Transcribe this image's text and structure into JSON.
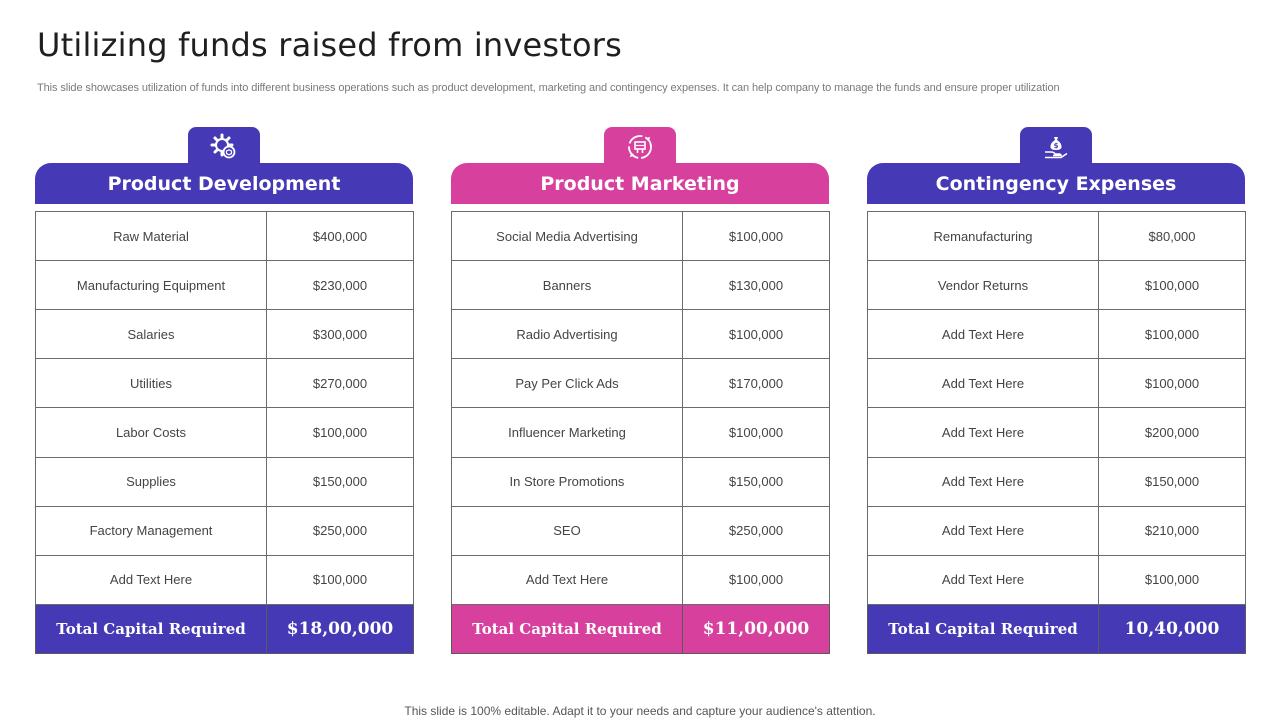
{
  "page": {
    "title": "Utilizing funds raised from investors",
    "subtitle": "This slide showcases utilization of funds into different business operations such as product development, marketing and contingency expenses. It can help company to manage the funds and ensure proper utilization",
    "footer": "This slide is 100% editable. Adapt it to your needs and capture your audience's attention."
  },
  "colors": {
    "blue": "#4539b6",
    "pink": "#d8409e"
  },
  "panels": [
    {
      "title": "Product Development",
      "icon": "gear-settings-icon",
      "rows": [
        {
          "label": "Raw Material",
          "value": "$400,000"
        },
        {
          "label": "Manufacturing  Equipment",
          "value": "$230,000"
        },
        {
          "label": "Salaries",
          "value": "$300,000"
        },
        {
          "label": "Utilities",
          "value": "$270,000"
        },
        {
          "label": "Labor Costs",
          "value": "$100,000"
        },
        {
          "label": "Supplies",
          "value": "$150,000"
        },
        {
          "label": "Factory Management",
          "value": "$250,000"
        },
        {
          "label": "Add Text Here",
          "value": "$100,000"
        }
      ],
      "total": {
        "label": "Total Capital Required",
        "value": "$18,00,000"
      }
    },
    {
      "title": "Product Marketing",
      "icon": "marketing-target-icon",
      "rows": [
        {
          "label": "Social Media Advertising",
          "value": "$100,000"
        },
        {
          "label": "Banners",
          "value": "$130,000"
        },
        {
          "label": "Radio Advertising",
          "value": "$100,000"
        },
        {
          "label": "Pay Per Click Ads",
          "value": "$170,000"
        },
        {
          "label": "Influencer  Marketing",
          "value": "$100,000"
        },
        {
          "label": "In Store Promotions",
          "value": "$150,000"
        },
        {
          "label": "SEO",
          "value": "$250,000"
        },
        {
          "label": "Add Text Here",
          "value": "$100,000"
        }
      ],
      "total": {
        "label": "Total Capital Required",
        "value": "$11,00,000"
      }
    },
    {
      "title": "Contingency Expenses",
      "icon": "money-bag-hand-icon",
      "rows": [
        {
          "label": "Remanufacturing",
          "value": "$80,000"
        },
        {
          "label": "Vendor Returns",
          "value": "$100,000"
        },
        {
          "label": "Add Text Here",
          "value": "$100,000"
        },
        {
          "label": "Add Text Here",
          "value": "$100,000"
        },
        {
          "label": "Add Text Here",
          "value": "$200,000"
        },
        {
          "label": "Add Text Here",
          "value": "$150,000"
        },
        {
          "label": "Add Text Here",
          "value": "$210,000"
        },
        {
          "label": "Add Text Here",
          "value": "$100,000"
        }
      ],
      "total": {
        "label": "Total Capital Required",
        "value": "10,40,000"
      }
    }
  ]
}
